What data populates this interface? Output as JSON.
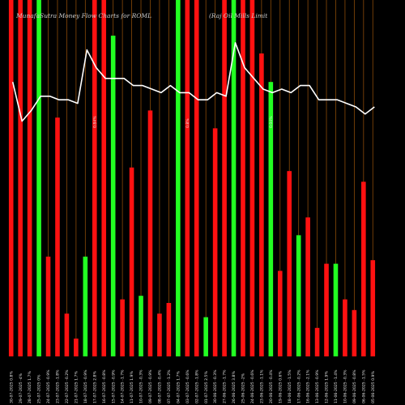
{
  "chart_data": {
    "type": "bar",
    "title": "MunafaSutra  Money Flow  Charts for ROML",
    "subtitle": "(Raj Oil Mills Limit",
    "colors": {
      "background": "#000000",
      "up": "#22ff22",
      "down": "#ff1111",
      "grid": "#8a4a08",
      "line": "#ffffff"
    },
    "ylim": [
      0,
      100
    ],
    "categories": [
      "30-07-2025 0.8%",
      "29-07-2025 -4%",
      "28-07-2025 1.7%",
      "25-07-2025 0%",
      "24-07-2025 -0.9%",
      "23-07-2025 -1.8%",
      "22-07-2025 -0.2%",
      "21-07-2025 1.7%",
      "18-07-2025 -0.9%",
      "17-07-2025 2.8%",
      "16-07-2025 -0.8%",
      "15-07-2025 -0.9%",
      "14-07-2025 -1.7%",
      "11-07-2025 1.9%",
      "10-07-2025 -0.3%",
      "09-07-2025 -0.9%",
      "08-07-2025 -0.4%",
      "07-07-2025 -1.2%",
      "04-07-2025 1.7%",
      "03-07-2025 -0.6%",
      "02-07-2025 -1.8%",
      "01-07-2025 2.5%",
      "30-06-2025 -0.3%",
      "27-06-2025 -1.7%",
      "26-06-2025 3.8%",
      "25-06-2025 -2%",
      "24-06-2025 -0.6%",
      "23-06-2025 -1.1%",
      "20-06-2025 -0.4%",
      "19-06-2025 0.6%",
      "18-06-2025 -1.5%",
      "17-06-2025 -0.2%",
      "16-06-2025 -2.1%",
      "13-06-2025 -0.9%",
      "12-06-2025 1.9%",
      "11-06-2025 -1.4%",
      "10-06-2025 -0.3%",
      "09-06-2025 -0.8%",
      "06-06-2025 -1.5%",
      "05-06-2025 0.9%"
    ],
    "top_labels": [
      {
        "index": 9,
        "text": "0.84%"
      },
      {
        "index": 19,
        "text": "0.8%"
      },
      {
        "index": 28,
        "text": "0.04%"
      }
    ],
    "directions": [
      "down",
      "down",
      "down",
      "up",
      "down",
      "down",
      "down",
      "down",
      "up",
      "down",
      "down",
      "up",
      "down",
      "down",
      "up",
      "down",
      "down",
      "down",
      "up",
      "down",
      "down",
      "up",
      "down",
      "down",
      "up",
      "down",
      "down",
      "down",
      "up",
      "down",
      "down",
      "up",
      "down",
      "down",
      "down",
      "up",
      "down",
      "down",
      "down",
      "down"
    ],
    "values": [
      100,
      100,
      100,
      100,
      28,
      67,
      12,
      5,
      28,
      100,
      100,
      90,
      16,
      53,
      17,
      69,
      12,
      15,
      100,
      100,
      100,
      11,
      64,
      100,
      100,
      100,
      100,
      85,
      77,
      24,
      52,
      34,
      39,
      8,
      26,
      26,
      16,
      13,
      49,
      27
    ],
    "line": [
      77,
      66,
      69,
      73,
      73,
      72,
      72,
      71,
      86,
      81,
      78,
      78,
      78,
      76,
      76,
      75,
      74,
      76,
      74,
      74,
      72,
      72,
      74,
      73,
      88,
      81,
      78,
      75,
      74,
      75,
      74,
      76,
      76,
      72,
      72,
      72,
      71,
      70,
      68,
      70
    ]
  }
}
